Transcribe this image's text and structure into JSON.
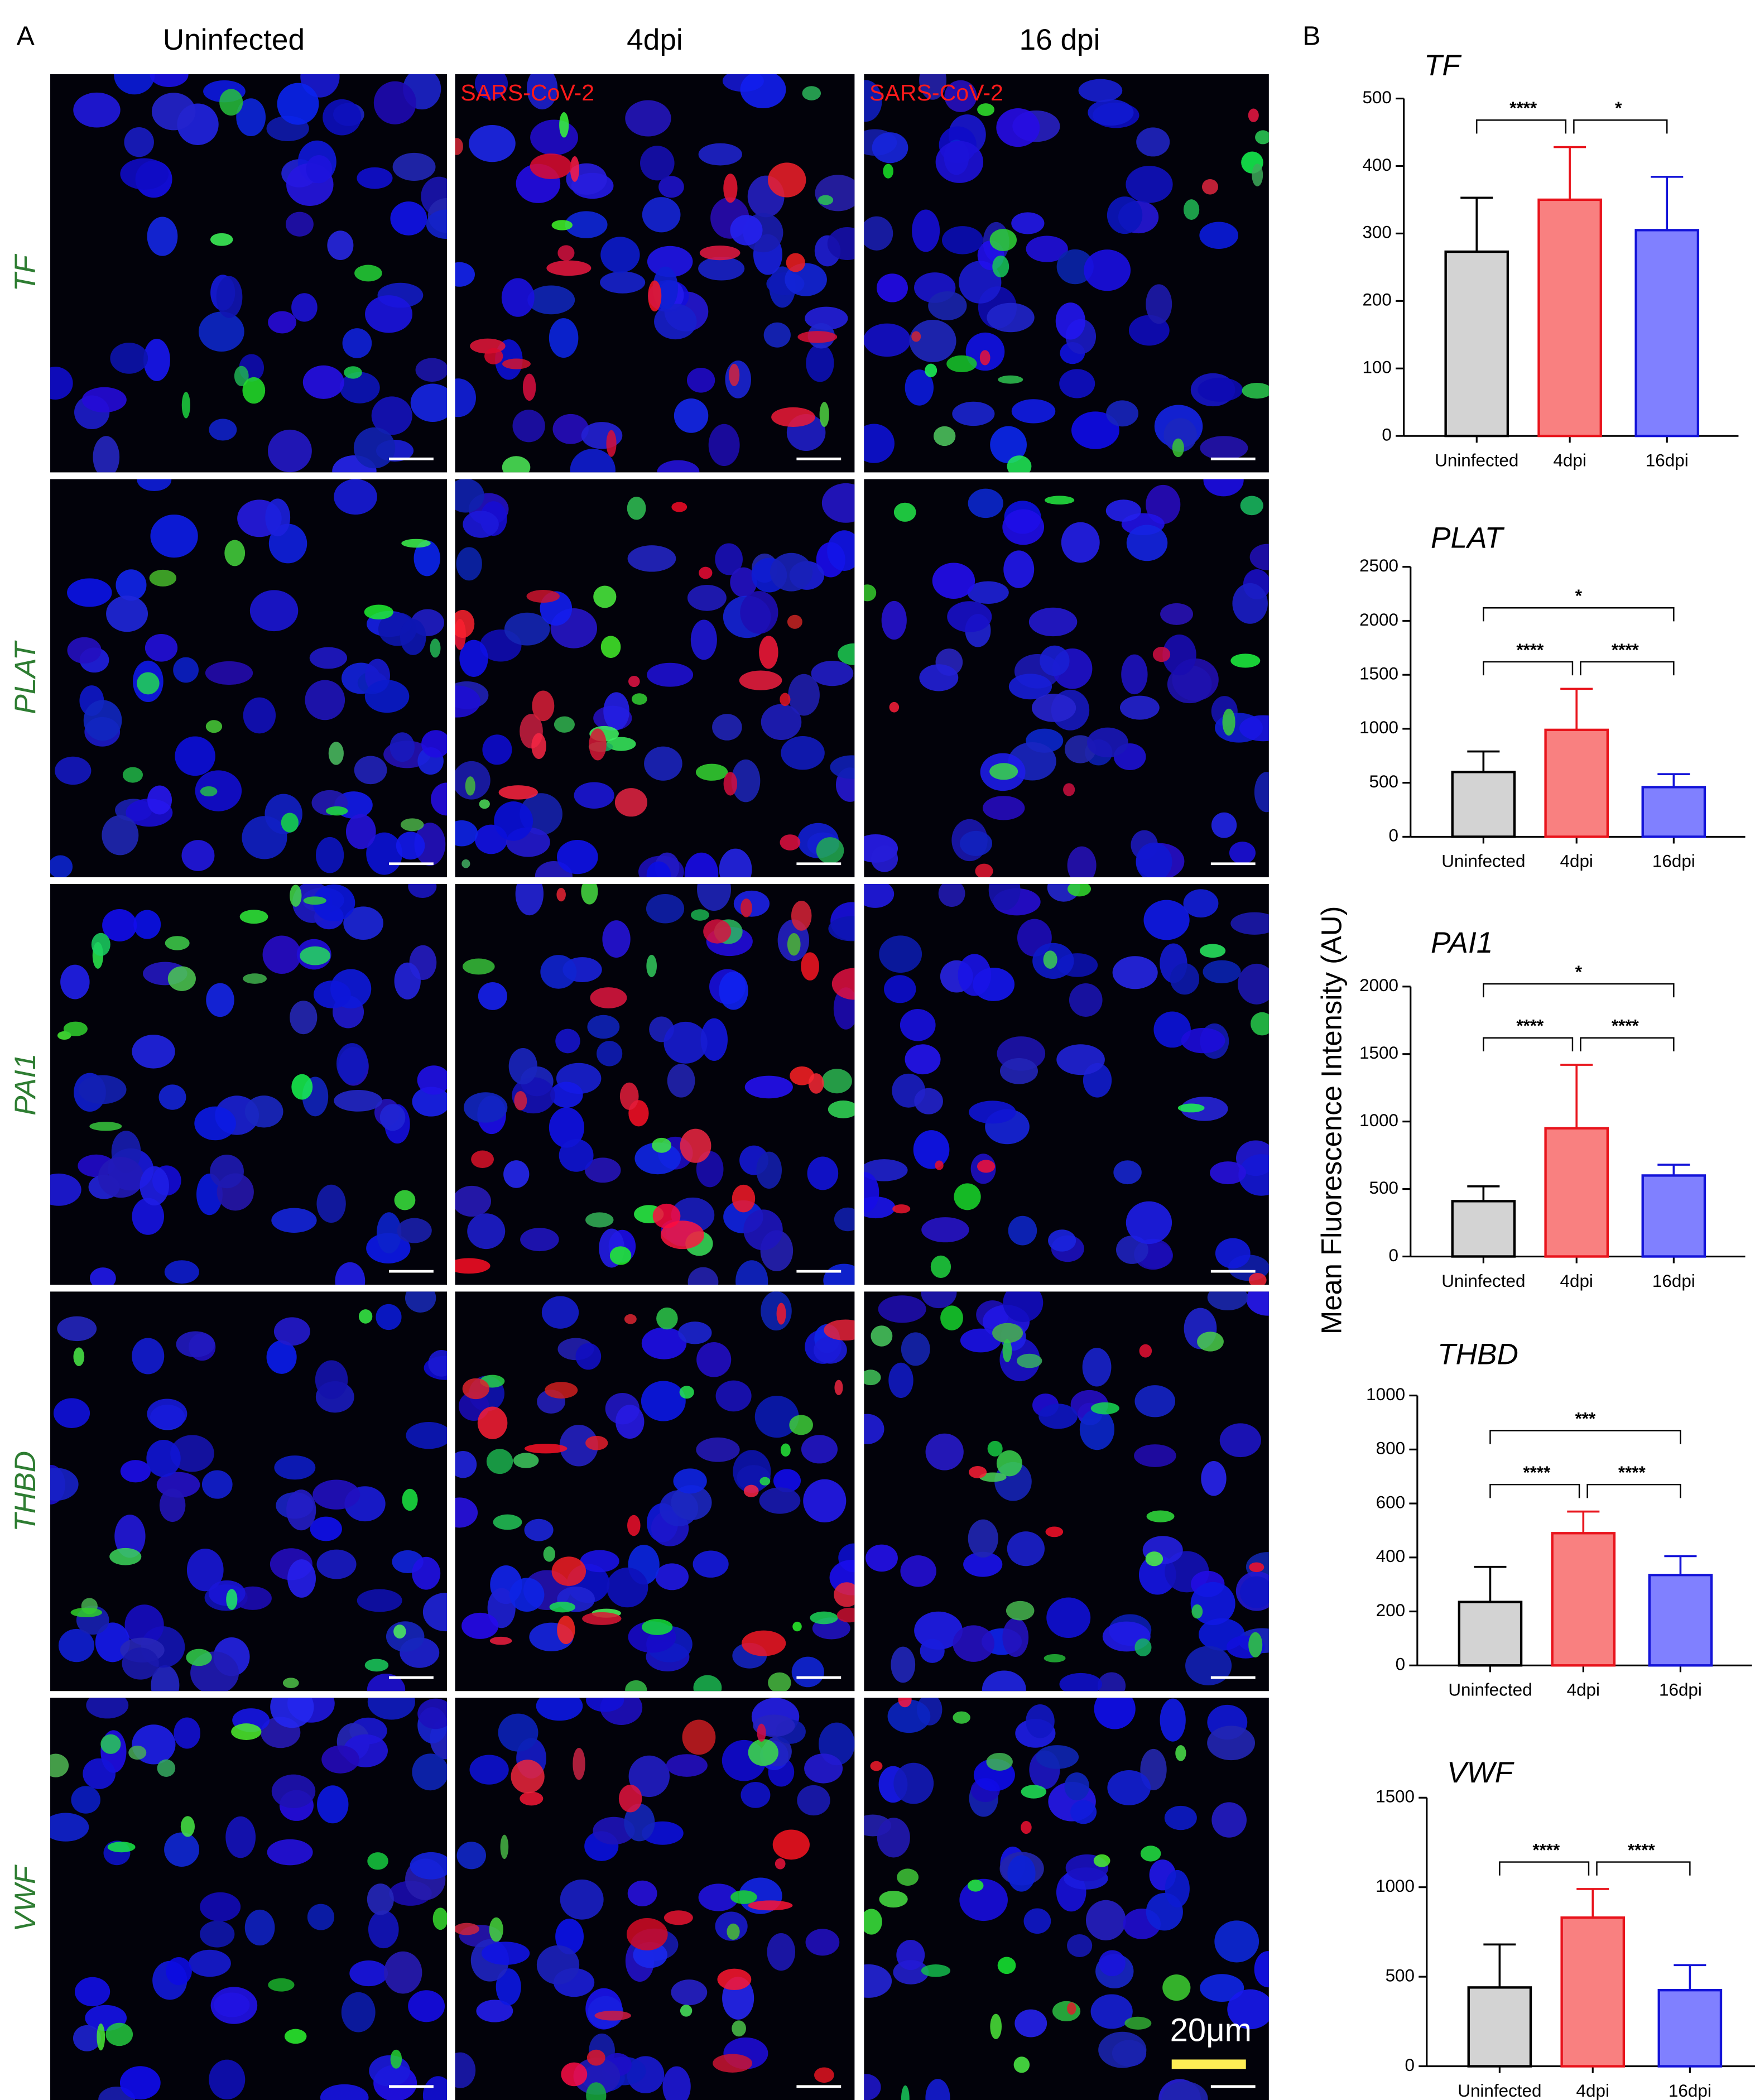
{
  "panel_a": {
    "label": "A",
    "column_titles": [
      "Uninfected",
      "4dpi",
      "16 dpi"
    ],
    "row_labels": [
      "TF",
      "PLAT",
      "PAI1",
      "THBD",
      "VWF"
    ],
    "virus_labels": [
      "SARS-CoV-2",
      "SARS-CoV-2"
    ],
    "scale_label": "20μm"
  },
  "panel_b": {
    "label": "B",
    "ylabel": "Mean Fluorescence Intensity (AU)"
  },
  "chart_data": [
    {
      "type": "bar",
      "title": "TF",
      "categories": [
        "Uninfected",
        "4dpi",
        "16dpi"
      ],
      "values": [
        273,
        350,
        305
      ],
      "errors": [
        80,
        78,
        79
      ],
      "colors": [
        "#d3d3d3",
        "#f98080",
        "#8080ff"
      ],
      "edge_colors": [
        "#000000",
        "#e8141c",
        "#1414d8"
      ],
      "ylim": [
        0,
        500
      ],
      "yticks": [
        0,
        100,
        200,
        300,
        400,
        500
      ],
      "significance": [
        {
          "pair": [
            0,
            1
          ],
          "label": "****"
        },
        {
          "pair": [
            1,
            2
          ],
          "label": "*"
        }
      ]
    },
    {
      "type": "bar",
      "title": "PLAT",
      "categories": [
        "Uninfected",
        "4dpi",
        "16dpi"
      ],
      "values": [
        600,
        990,
        460
      ],
      "errors": [
        190,
        380,
        120
      ],
      "colors": [
        "#d3d3d3",
        "#f98080",
        "#8080ff"
      ],
      "edge_colors": [
        "#000000",
        "#e8141c",
        "#1414d8"
      ],
      "ylim": [
        0,
        2500
      ],
      "yticks": [
        0,
        500,
        1000,
        1500,
        2000,
        2500
      ],
      "significance": [
        {
          "pair": [
            0,
            1
          ],
          "label": "****"
        },
        {
          "pair": [
            1,
            2
          ],
          "label": "****"
        },
        {
          "pair": [
            0,
            2
          ],
          "label": "*"
        }
      ]
    },
    {
      "type": "bar",
      "title": "PAI1",
      "categories": [
        "Uninfected",
        "4dpi",
        "16dpi"
      ],
      "values": [
        410,
        950,
        600
      ],
      "errors": [
        110,
        470,
        80
      ],
      "colors": [
        "#d3d3d3",
        "#f98080",
        "#8080ff"
      ],
      "edge_colors": [
        "#000000",
        "#e8141c",
        "#1414d8"
      ],
      "ylim": [
        0,
        2000
      ],
      "yticks": [
        0,
        500,
        1000,
        1500,
        2000
      ],
      "significance": [
        {
          "pair": [
            0,
            1
          ],
          "label": "****"
        },
        {
          "pair": [
            1,
            2
          ],
          "label": "****"
        },
        {
          "pair": [
            0,
            2
          ],
          "label": "*"
        }
      ]
    },
    {
      "type": "bar",
      "title": "THBD",
      "categories": [
        "Uninfected",
        "4dpi",
        "16dpi"
      ],
      "values": [
        235,
        490,
        335
      ],
      "errors": [
        130,
        80,
        70
      ],
      "colors": [
        "#d3d3d3",
        "#f98080",
        "#8080ff"
      ],
      "edge_colors": [
        "#000000",
        "#e8141c",
        "#1414d8"
      ],
      "ylim": [
        0,
        1000
      ],
      "yticks": [
        0,
        200,
        400,
        600,
        800,
        1000
      ],
      "significance": [
        {
          "pair": [
            0,
            1
          ],
          "label": "****"
        },
        {
          "pair": [
            1,
            2
          ],
          "label": "****"
        },
        {
          "pair": [
            0,
            2
          ],
          "label": "***"
        }
      ]
    },
    {
      "type": "bar",
      "title": "VWF",
      "categories": [
        "Uninfected",
        "4dpi",
        "16dpi"
      ],
      "values": [
        440,
        830,
        425
      ],
      "errors": [
        240,
        160,
        140
      ],
      "colors": [
        "#d3d3d3",
        "#f98080",
        "#8080ff"
      ],
      "edge_colors": [
        "#000000",
        "#e8141c",
        "#1414d8"
      ],
      "ylim": [
        0,
        1500
      ],
      "yticks": [
        0,
        500,
        1000,
        1500
      ],
      "significance": [
        {
          "pair": [
            0,
            1
          ],
          "label": "****"
        },
        {
          "pair": [
            1,
            2
          ],
          "label": "****"
        }
      ]
    }
  ]
}
